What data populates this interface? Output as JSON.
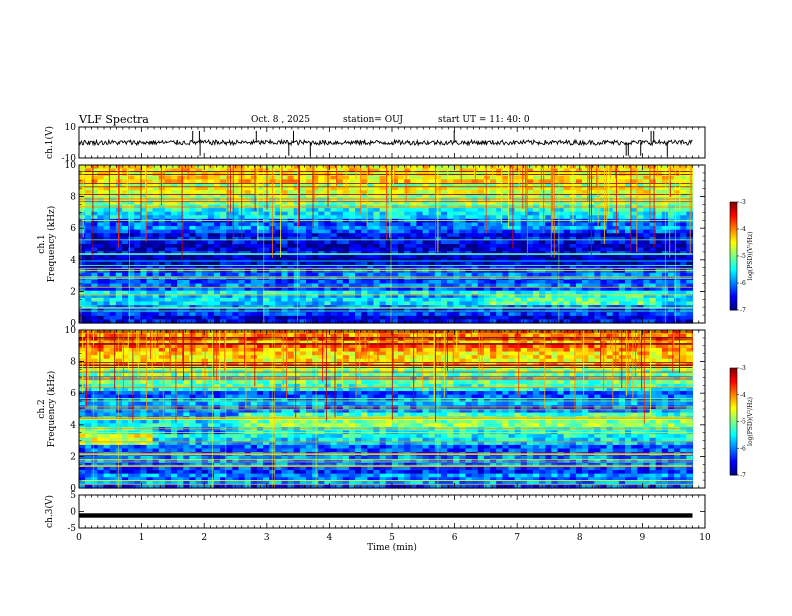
{
  "header": {
    "title": "VLF Spectra",
    "date": "Oct. 8 , 2025",
    "station": "station= OUJ",
    "start": "start UT =  11: 40: 0"
  },
  "chart_data": {
    "type": "heatmap",
    "x_label": "Time (min)",
    "x_range": [
      0,
      10
    ],
    "x_ticks": [
      "0",
      "1",
      "2",
      "3",
      "4",
      "5",
      "6",
      "7",
      "8",
      "9",
      "10"
    ],
    "panels": [
      {
        "id": "ch1_waveform",
        "type": "line",
        "ylabel": "ch.1(V)",
        "ylim": [
          -10,
          10
        ],
        "y_ticks": [
          "10",
          "-10"
        ],
        "trace_level": 0,
        "trace_end_min": 9.8
      },
      {
        "id": "ch1_spectrogram",
        "type": "heatmap",
        "ylabel": "ch.1\nFrequency (kHz)",
        "ylim": [
          0,
          10
        ],
        "y_ticks": [
          "10",
          "8",
          "6",
          "4",
          "2",
          "0"
        ],
        "colorbar": {
          "label": "log(PSD)(V²/Hz)",
          "range": [
            -7,
            -3
          ],
          "ticks": [
            "-3",
            "-4",
            "-5",
            "-6",
            "-7"
          ]
        },
        "freq_profile_khz": [
          0,
          0.5,
          1,
          1.5,
          2,
          2.5,
          3,
          3.5,
          4,
          4.5,
          5,
          5.5,
          6,
          6.5,
          7,
          7.5,
          8,
          8.5,
          9,
          9.5,
          10
        ],
        "log_psd_profile": [
          -6.2,
          -6.5,
          -6.1,
          -5.3,
          -5.8,
          -6.4,
          -6.3,
          -6.5,
          -6.7,
          -6.8,
          -6.8,
          -6.6,
          -6.1,
          -5.9,
          -5.4,
          -5.0,
          -4.8,
          -4.7,
          -4.6,
          -4.5,
          -4.6
        ]
      },
      {
        "id": "ch2_spectrogram",
        "type": "heatmap",
        "ylabel": "ch.2\nFrequency (kHz)",
        "ylim": [
          0,
          10
        ],
        "y_ticks": [
          "10",
          "8",
          "6",
          "4",
          "2",
          "0"
        ],
        "colorbar": {
          "label": "log(PSD)(V²/Hz)",
          "range": [
            -7,
            -3
          ],
          "ticks": [
            "-3",
            "-4",
            "-5",
            "-6",
            "-7"
          ]
        },
        "freq_profile_khz": [
          0,
          0.5,
          1,
          1.5,
          2,
          2.5,
          3,
          3.5,
          4,
          4.5,
          5,
          5.5,
          6,
          6.5,
          7,
          7.5,
          8,
          8.5,
          9,
          9.5,
          10
        ],
        "log_psd_profile": [
          -6.3,
          -6.1,
          -6.2,
          -5.8,
          -6.0,
          -6.2,
          -5.6,
          -5.9,
          -5.5,
          -6.2,
          -6.0,
          -6.1,
          -5.9,
          -5.5,
          -5.0,
          -4.6,
          -4.3,
          -4.1,
          -4.0,
          -3.9,
          -4.1
        ]
      },
      {
        "id": "ch3_waveform",
        "type": "line",
        "ylabel": "ch.3(V)",
        "ylim": [
          -5,
          5
        ],
        "y_ticks": [
          "5",
          "0",
          "-5"
        ],
        "trace_level": -1.2,
        "trace_end_min": 9.8
      }
    ]
  }
}
